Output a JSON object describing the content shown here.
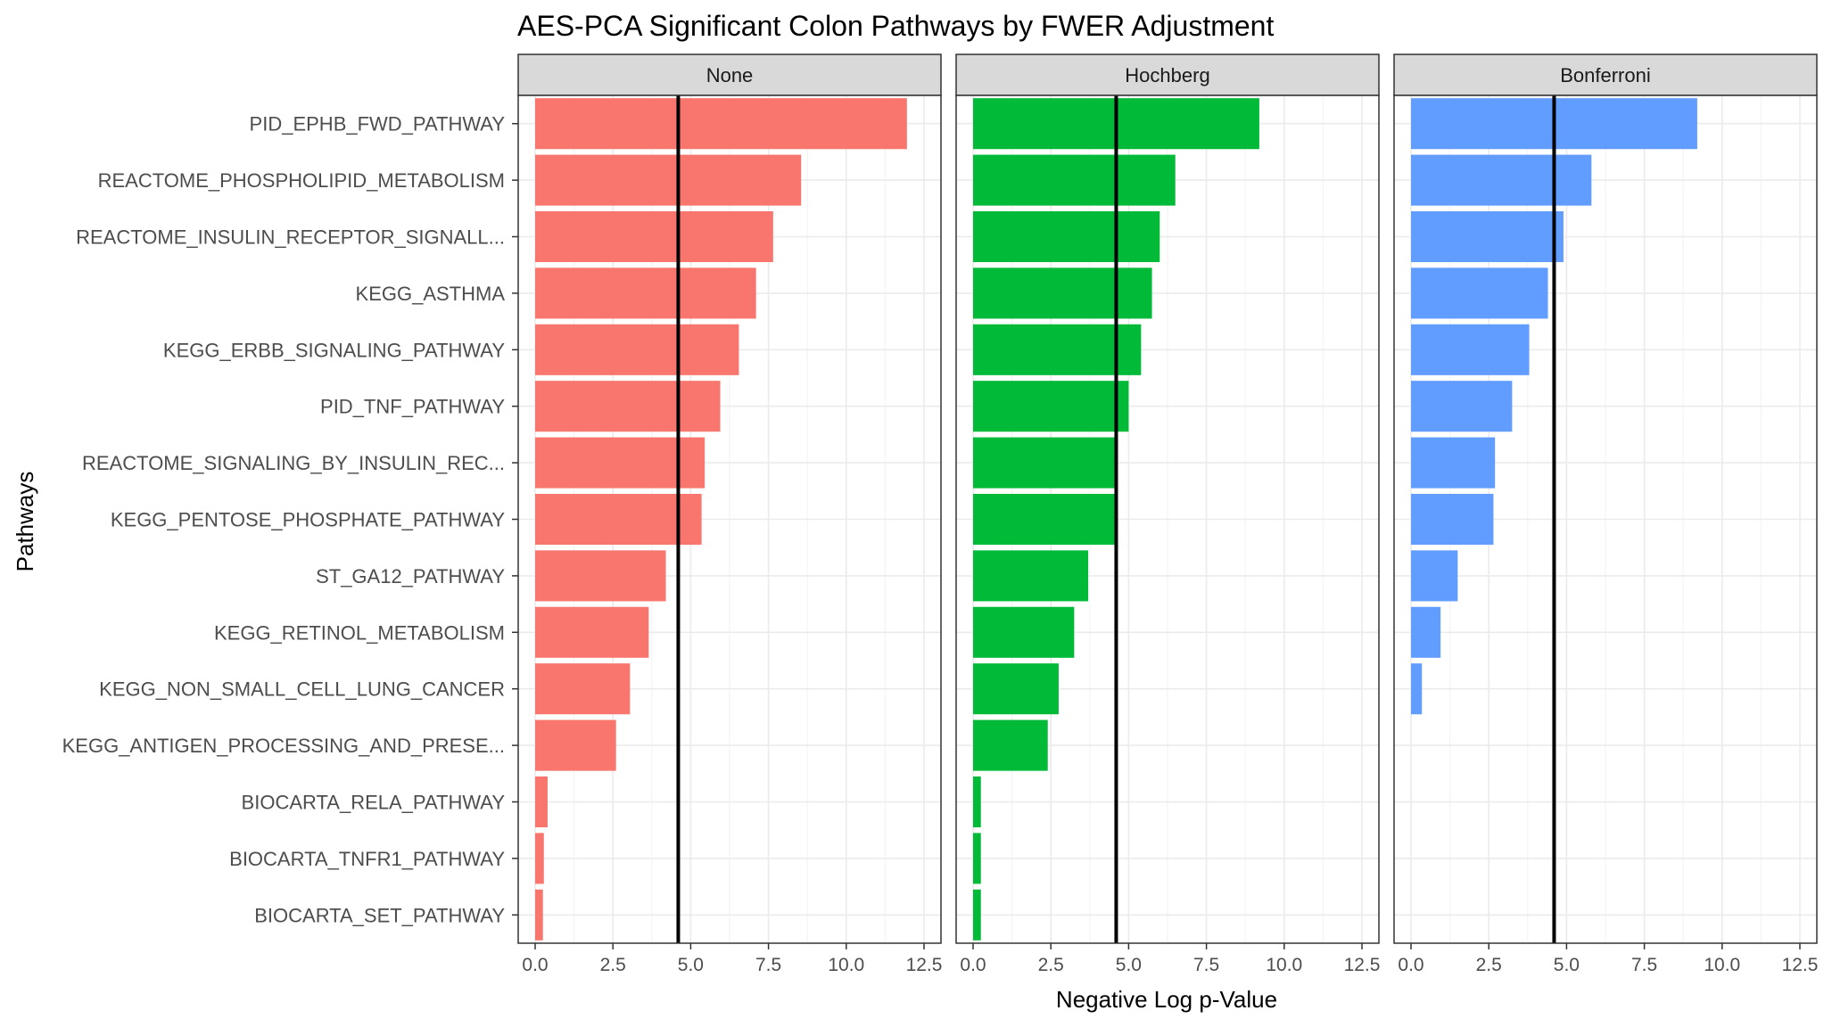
{
  "chart_data": {
    "type": "bar",
    "orientation": "horizontal",
    "title": "AES-PCA Significant Colon Pathways by FWER Adjustment",
    "xlabel": "Negative Log p-Value",
    "ylabel": "Pathways",
    "xlim": [
      0,
      12.5
    ],
    "x_ticks": [
      "0.0",
      "2.5",
      "5.0",
      "7.5",
      "10.0",
      "12.5"
    ],
    "threshold_line": 4.6,
    "grid": true,
    "categories": [
      "PID_EPHB_FWD_PATHWAY",
      "REACTOME_PHOSPHOLIPID_METABOLISM",
      "REACTOME_INSULIN_RECEPTOR_SIGNALL...",
      "KEGG_ASTHMA",
      "KEGG_ERBB_SIGNALING_PATHWAY",
      "PID_TNF_PATHWAY",
      "REACTOME_SIGNALING_BY_INSULIN_REC...",
      "KEGG_PENTOSE_PHOSPHATE_PATHWAY",
      "ST_GA12_PATHWAY",
      "KEGG_RETINOL_METABOLISM",
      "KEGG_NON_SMALL_CELL_LUNG_CANCER",
      "KEGG_ANTIGEN_PROCESSING_AND_PRESE...",
      "BIOCARTA_RELA_PATHWAY",
      "BIOCARTA_TNFR1_PATHWAY",
      "BIOCARTA_SET_PATHWAY"
    ],
    "series": [
      {
        "name": "None",
        "color": "#F8766D",
        "values": [
          11.95,
          8.55,
          7.65,
          7.1,
          6.55,
          5.95,
          5.45,
          5.35,
          4.2,
          3.65,
          3.05,
          2.6,
          0.4,
          0.28,
          0.25
        ]
      },
      {
        "name": "Hochberg",
        "color": "#00BA38",
        "values": [
          9.2,
          6.5,
          6.0,
          5.75,
          5.4,
          5.0,
          4.6,
          4.6,
          3.7,
          3.25,
          2.75,
          2.4,
          0.25,
          0.25,
          0.25
        ]
      },
      {
        "name": "Bonferroni",
        "color": "#619CFF",
        "values": [
          9.2,
          5.8,
          4.9,
          4.4,
          3.8,
          3.25,
          2.7,
          2.65,
          1.5,
          0.95,
          0.35,
          0,
          0,
          0,
          0
        ]
      }
    ]
  }
}
